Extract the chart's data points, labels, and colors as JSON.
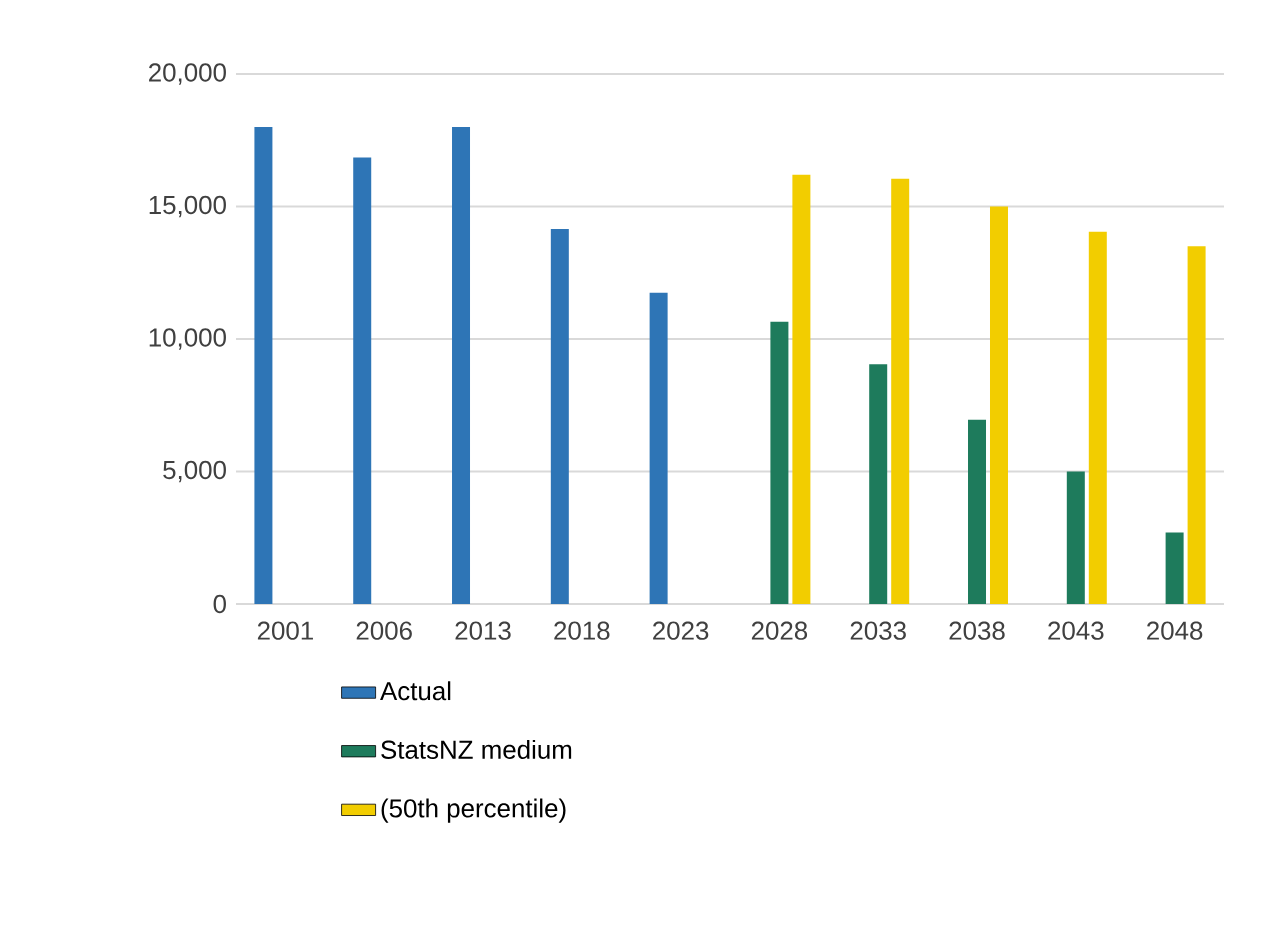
{
  "chart_data": {
    "type": "bar",
    "categories": [
      "2001",
      "2006",
      "2013",
      "2018",
      "2023",
      "2028",
      "2033",
      "2038",
      "2043",
      "2048"
    ],
    "series": [
      {
        "name": "Actual",
        "color": "#2e75b6",
        "values": [
          18000,
          16850,
          18000,
          14150,
          11750,
          null,
          null,
          null,
          null,
          null
        ]
      },
      {
        "name": "StatsNZ medium",
        "color": "#1e7b5c",
        "values": [
          null,
          null,
          null,
          null,
          null,
          10650,
          9050,
          6950,
          5000,
          2700
        ]
      },
      {
        "name": "(50th percentile)",
        "color": "#f2cd00",
        "values": [
          null,
          null,
          null,
          null,
          null,
          16200,
          16050,
          15000,
          14050,
          13500
        ]
      }
    ],
    "ylim": [
      0,
      20000
    ],
    "yticks": [
      {
        "value": 0,
        "label": "0"
      },
      {
        "value": 5000,
        "label": "5,000"
      },
      {
        "value": 10000,
        "label": "10,000"
      },
      {
        "value": 15000,
        "label": "15,000"
      },
      {
        "value": 20000,
        "label": "20,000"
      }
    ],
    "grid": "y",
    "legend": "bottom"
  }
}
